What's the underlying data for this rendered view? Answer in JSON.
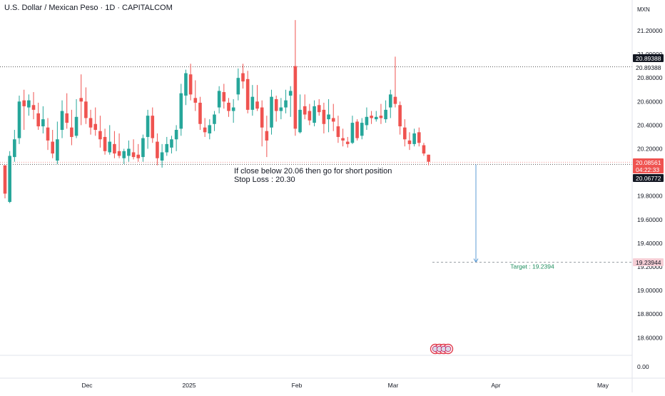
{
  "header": {
    "title": "U.S. Dollar / Mexican Peso · 1D · CAPITALCOM",
    "currency": "MXN"
  },
  "colors": {
    "up": "#26a69a",
    "down": "#ef5350",
    "resistance_line": "#555555",
    "support_line": "#555555",
    "price_line": "#ef5350",
    "arrow": "#5b9bd5",
    "target_text": "#1e8e5e",
    "target_badge_bg": "#f6cfd6",
    "axis_text": "#131722",
    "grid_line": "#e0e3eb"
  },
  "annotation": {
    "line1": "If close below 20.06 then go for short position",
    "line2": "Stop Loss : 20.30",
    "target_label": "Target : 19.2394",
    "arrow_from": 20.06772,
    "arrow_to": 19.23944
  },
  "price_scale": {
    "ticks": [
      "21.20000",
      "21.00000",
      "20.80000",
      "20.60000",
      "20.40000",
      "20.20000",
      "19.80000",
      "19.60000",
      "19.40000",
      "19.20000",
      "19.00000",
      "18.80000",
      "18.60000"
    ],
    "tick_values": [
      21.2,
      21.0,
      20.8,
      20.6,
      20.4,
      20.2,
      19.8,
      19.6,
      19.4,
      19.2,
      19.0,
      18.8,
      18.6
    ],
    "zero_label": "0.00",
    "badges": [
      {
        "text": "20.89388",
        "style": "dark"
      },
      {
        "text": "20.89388",
        "style": "plain"
      },
      {
        "text": "20.08561",
        "style": "red"
      },
      {
        "text": "04:22:33",
        "style": "red"
      },
      {
        "text": "20.06772",
        "style": "dark"
      },
      {
        "text": "19.23944",
        "style": "pink"
      }
    ]
  },
  "time_axis": {
    "labels": [
      "Dec",
      "2025",
      "Feb",
      "Mar",
      "Apr",
      "May"
    ]
  },
  "chart_data": {
    "type": "candlestick",
    "title": "U.S. Dollar / Mexican Peso · 1D · CAPITALCOM",
    "ylim": [
      18.5,
      21.3
    ],
    "horizontal_levels": [
      20.89388,
      20.06772,
      19.23944
    ],
    "last_price": 20.08561,
    "countdown": "04:22:33",
    "candles": [
      {
        "o": 20.06,
        "h": 20.06,
        "l": 19.78,
        "c": 19.82
      },
      {
        "o": 19.75,
        "h": 20.18,
        "l": 19.74,
        "c": 20.14
      },
      {
        "o": 20.13,
        "h": 20.36,
        "l": 20.09,
        "c": 20.28
      },
      {
        "o": 20.29,
        "h": 20.65,
        "l": 20.24,
        "c": 20.6
      },
      {
        "o": 20.61,
        "h": 20.7,
        "l": 20.36,
        "c": 20.56
      },
      {
        "o": 20.55,
        "h": 20.66,
        "l": 20.48,
        "c": 20.61
      },
      {
        "o": 20.57,
        "h": 20.68,
        "l": 20.45,
        "c": 20.53
      },
      {
        "o": 20.5,
        "h": 20.59,
        "l": 20.36,
        "c": 20.39
      },
      {
        "o": 20.39,
        "h": 20.56,
        "l": 20.33,
        "c": 20.45
      },
      {
        "o": 20.38,
        "h": 20.46,
        "l": 20.19,
        "c": 20.27
      },
      {
        "o": 20.26,
        "h": 20.36,
        "l": 20.12,
        "c": 20.16
      },
      {
        "o": 20.1,
        "h": 20.43,
        "l": 20.07,
        "c": 20.28
      },
      {
        "o": 20.36,
        "h": 20.61,
        "l": 20.29,
        "c": 20.52
      },
      {
        "o": 20.5,
        "h": 20.67,
        "l": 20.37,
        "c": 20.42
      },
      {
        "o": 20.38,
        "h": 20.53,
        "l": 20.23,
        "c": 20.3
      },
      {
        "o": 20.31,
        "h": 20.62,
        "l": 20.29,
        "c": 20.47
      },
      {
        "o": 20.63,
        "h": 20.83,
        "l": 20.4,
        "c": 20.6
      },
      {
        "o": 20.6,
        "h": 20.72,
        "l": 20.41,
        "c": 20.46
      },
      {
        "o": 20.46,
        "h": 20.53,
        "l": 20.32,
        "c": 20.38
      },
      {
        "o": 20.41,
        "h": 20.55,
        "l": 20.31,
        "c": 20.36
      },
      {
        "o": 20.35,
        "h": 20.48,
        "l": 20.21,
        "c": 20.28
      },
      {
        "o": 20.3,
        "h": 20.37,
        "l": 20.15,
        "c": 20.18
      },
      {
        "o": 20.17,
        "h": 20.4,
        "l": 20.15,
        "c": 20.26
      },
      {
        "o": 20.24,
        "h": 20.35,
        "l": 20.12,
        "c": 20.16
      },
      {
        "o": 20.18,
        "h": 20.33,
        "l": 20.12,
        "c": 20.14
      },
      {
        "o": 20.12,
        "h": 20.2,
        "l": 20.07,
        "c": 20.18
      },
      {
        "o": 20.14,
        "h": 20.27,
        "l": 20.09,
        "c": 20.2
      },
      {
        "o": 20.17,
        "h": 20.28,
        "l": 20.11,
        "c": 20.13
      },
      {
        "o": 20.15,
        "h": 20.24,
        "l": 20.09,
        "c": 20.12
      },
      {
        "o": 20.13,
        "h": 20.32,
        "l": 20.09,
        "c": 20.29
      },
      {
        "o": 20.3,
        "h": 20.53,
        "l": 20.2,
        "c": 20.48
      },
      {
        "o": 20.48,
        "h": 20.55,
        "l": 20.25,
        "c": 20.29
      },
      {
        "o": 20.26,
        "h": 20.33,
        "l": 20.06,
        "c": 20.12
      },
      {
        "o": 20.1,
        "h": 20.24,
        "l": 20.04,
        "c": 20.17
      },
      {
        "o": 20.17,
        "h": 20.3,
        "l": 20.14,
        "c": 20.24
      },
      {
        "o": 20.21,
        "h": 20.31,
        "l": 20.16,
        "c": 20.28
      },
      {
        "o": 20.28,
        "h": 20.4,
        "l": 20.18,
        "c": 20.36
      },
      {
        "o": 20.37,
        "h": 20.75,
        "l": 20.31,
        "c": 20.67
      },
      {
        "o": 20.65,
        "h": 20.87,
        "l": 20.57,
        "c": 20.84
      },
      {
        "o": 20.83,
        "h": 20.92,
        "l": 20.61,
        "c": 20.66
      },
      {
        "o": 20.63,
        "h": 20.78,
        "l": 20.52,
        "c": 20.59
      },
      {
        "o": 20.59,
        "h": 20.64,
        "l": 20.36,
        "c": 20.41
      },
      {
        "o": 20.38,
        "h": 20.46,
        "l": 20.3,
        "c": 20.34
      },
      {
        "o": 20.33,
        "h": 20.45,
        "l": 20.28,
        "c": 20.4
      },
      {
        "o": 20.41,
        "h": 20.52,
        "l": 20.35,
        "c": 20.49
      },
      {
        "o": 20.55,
        "h": 20.73,
        "l": 20.5,
        "c": 20.69
      },
      {
        "o": 20.68,
        "h": 20.75,
        "l": 20.54,
        "c": 20.6
      },
      {
        "o": 20.59,
        "h": 20.63,
        "l": 20.47,
        "c": 20.52
      },
      {
        "o": 20.52,
        "h": 20.62,
        "l": 20.42,
        "c": 20.55
      },
      {
        "o": 20.66,
        "h": 20.88,
        "l": 20.61,
        "c": 20.8
      },
      {
        "o": 20.84,
        "h": 20.92,
        "l": 20.71,
        "c": 20.77
      },
      {
        "o": 20.79,
        "h": 20.86,
        "l": 20.5,
        "c": 20.53
      },
      {
        "o": 20.53,
        "h": 20.74,
        "l": 20.48,
        "c": 20.64
      },
      {
        "o": 20.6,
        "h": 20.74,
        "l": 20.52,
        "c": 20.54
      },
      {
        "o": 20.55,
        "h": 20.61,
        "l": 20.22,
        "c": 20.38
      },
      {
        "o": 20.35,
        "h": 20.48,
        "l": 20.13,
        "c": 20.27
      },
      {
        "o": 20.38,
        "h": 20.7,
        "l": 20.32,
        "c": 20.64
      },
      {
        "o": 20.62,
        "h": 20.65,
        "l": 20.43,
        "c": 20.52
      },
      {
        "o": 20.52,
        "h": 20.63,
        "l": 20.45,
        "c": 20.55
      },
      {
        "o": 20.55,
        "h": 20.7,
        "l": 20.5,
        "c": 20.61
      },
      {
        "o": 20.65,
        "h": 20.73,
        "l": 20.47,
        "c": 20.69
      },
      {
        "o": 20.9,
        "h": 21.29,
        "l": 20.31,
        "c": 20.37
      },
      {
        "o": 20.34,
        "h": 20.66,
        "l": 20.33,
        "c": 20.53
      },
      {
        "o": 20.56,
        "h": 20.66,
        "l": 20.45,
        "c": 20.49
      },
      {
        "o": 20.52,
        "h": 20.58,
        "l": 20.4,
        "c": 20.44
      },
      {
        "o": 20.42,
        "h": 20.61,
        "l": 20.39,
        "c": 20.56
      },
      {
        "o": 20.57,
        "h": 20.62,
        "l": 20.48,
        "c": 20.51
      },
      {
        "o": 20.53,
        "h": 20.59,
        "l": 20.33,
        "c": 20.41
      },
      {
        "o": 20.45,
        "h": 20.62,
        "l": 20.34,
        "c": 20.49
      },
      {
        "o": 20.46,
        "h": 20.58,
        "l": 20.35,
        "c": 20.43
      },
      {
        "o": 20.39,
        "h": 20.48,
        "l": 20.25,
        "c": 20.3
      },
      {
        "o": 20.29,
        "h": 20.37,
        "l": 20.22,
        "c": 20.27
      },
      {
        "o": 20.26,
        "h": 20.3,
        "l": 20.21,
        "c": 20.24
      },
      {
        "o": 20.25,
        "h": 20.48,
        "l": 20.24,
        "c": 20.42
      },
      {
        "o": 20.43,
        "h": 20.45,
        "l": 20.27,
        "c": 20.29
      },
      {
        "o": 20.31,
        "h": 20.46,
        "l": 20.28,
        "c": 20.42
      },
      {
        "o": 20.4,
        "h": 20.55,
        "l": 20.36,
        "c": 20.47
      },
      {
        "o": 20.48,
        "h": 20.52,
        "l": 20.41,
        "c": 20.46
      },
      {
        "o": 20.45,
        "h": 20.52,
        "l": 20.43,
        "c": 20.47
      },
      {
        "o": 20.48,
        "h": 20.58,
        "l": 20.41,
        "c": 20.46
      },
      {
        "o": 20.45,
        "h": 20.61,
        "l": 20.42,
        "c": 20.53
      },
      {
        "o": 20.55,
        "h": 20.7,
        "l": 20.46,
        "c": 20.66
      },
      {
        "o": 20.64,
        "h": 20.98,
        "l": 20.55,
        "c": 20.58
      },
      {
        "o": 20.57,
        "h": 20.6,
        "l": 20.32,
        "c": 20.39
      },
      {
        "o": 20.38,
        "h": 20.45,
        "l": 20.22,
        "c": 20.28
      },
      {
        "o": 20.27,
        "h": 20.34,
        "l": 20.19,
        "c": 20.24
      },
      {
        "o": 20.24,
        "h": 20.37,
        "l": 20.22,
        "c": 20.33
      },
      {
        "o": 20.34,
        "h": 20.38,
        "l": 20.22,
        "c": 20.25
      },
      {
        "o": 20.23,
        "h": 20.25,
        "l": 20.14,
        "c": 20.16
      },
      {
        "o": 20.15,
        "h": 20.15,
        "l": 20.06,
        "c": 20.09
      }
    ]
  }
}
